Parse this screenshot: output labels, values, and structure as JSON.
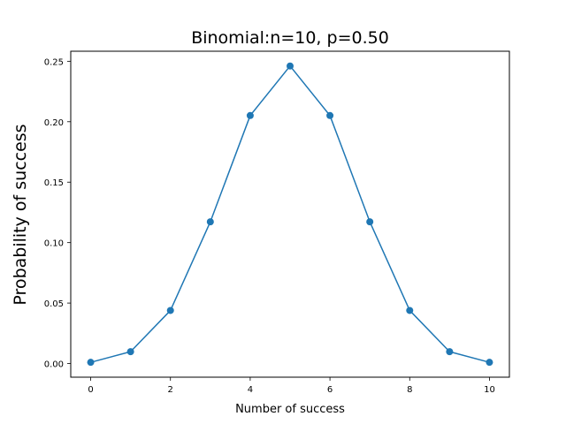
{
  "chart_data": {
    "type": "line",
    "title": "Binomial:n=10, p=0.50",
    "xlabel": "Number of success",
    "ylabel": "Probability of success",
    "x": [
      0,
      1,
      2,
      3,
      4,
      5,
      6,
      7,
      8,
      9,
      10
    ],
    "series": [
      {
        "values": [
          0.001,
          0.0098,
          0.0439,
          0.1172,
          0.2051,
          0.2461,
          0.2051,
          0.1172,
          0.0439,
          0.0098,
          0.001
        ],
        "color": "#1f77b4",
        "marker": "circle"
      }
    ],
    "xlim": [
      -0.5,
      10.5
    ],
    "ylim": [
      -0.0113,
      0.2583
    ],
    "xticks": [
      0,
      2,
      4,
      6,
      8,
      10
    ],
    "xtick_labels": [
      "0",
      "2",
      "4",
      "6",
      "8",
      "10"
    ],
    "yticks": [
      0,
      0.05,
      0.1,
      0.15,
      0.2,
      0.25
    ],
    "ytick_labels": [
      "0.00",
      "0.05",
      "0.10",
      "0.15",
      "0.20",
      "0.25"
    ],
    "grid": false,
    "legend": false
  }
}
